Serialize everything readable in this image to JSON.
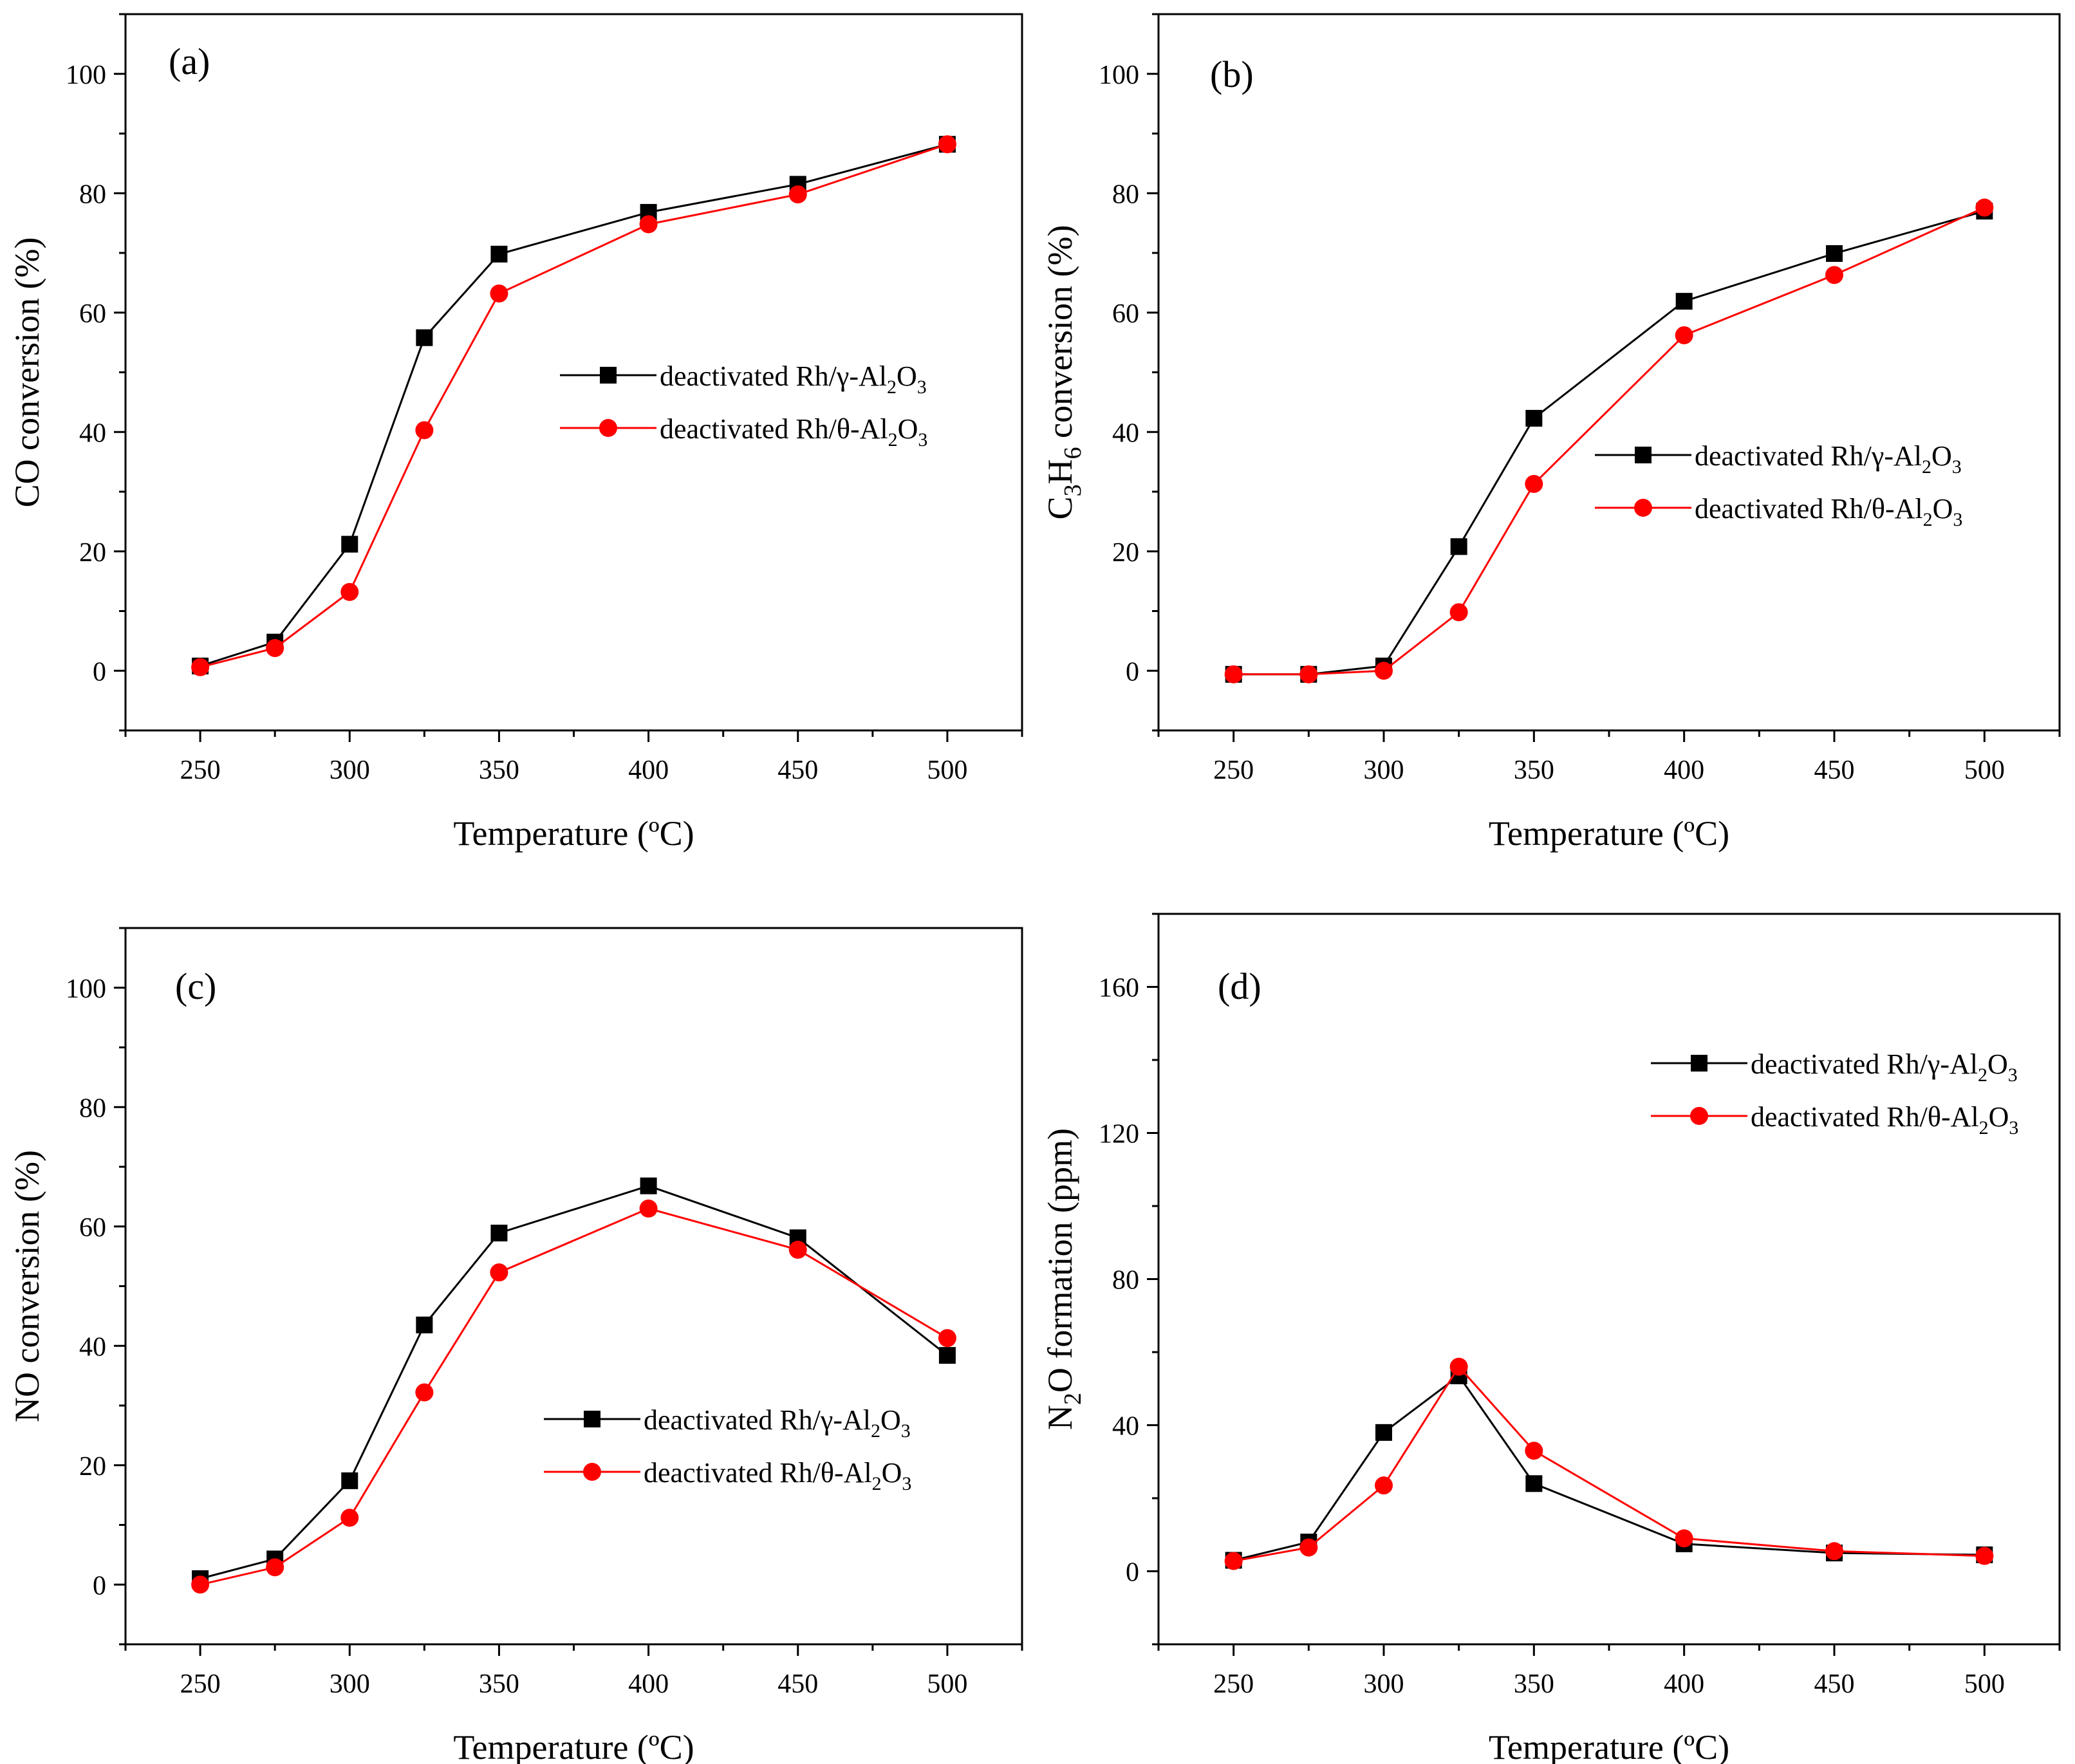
{
  "colors": {
    "series_a": "#000000",
    "series_b": "#ff0000"
  },
  "chart_data": [
    {
      "panel": "(a)",
      "type": "line",
      "x": [
        250,
        275,
        300,
        325,
        350,
        400,
        450,
        500
      ],
      "xlabel": "Temperature (ºC)",
      "ylabel": "CO conversion (%)",
      "ylabel_parts": [
        {
          "t": "CO conversion (%)",
          "sub": false
        }
      ],
      "xticks": [
        250,
        300,
        350,
        400,
        450,
        500
      ],
      "yticks": [
        0,
        20,
        40,
        60,
        80,
        100
      ],
      "xlim": [
        225,
        525
      ],
      "ylim": [
        -10,
        110
      ],
      "legend_position": "center-right",
      "series": [
        {
          "name": "deactivated Rh/γ-Al2O3",
          "legend_parts": [
            {
              "t": "deactivated Rh/γ-Al",
              "sub": false
            },
            {
              "t": "2",
              "sub": true
            },
            {
              "t": "O",
              "sub": false
            },
            {
              "t": "3",
              "sub": true
            }
          ],
          "marker": "square",
          "color": "#000000",
          "values": [
            0.8,
            4.8,
            21.2,
            55.8,
            69.8,
            76.8,
            81.5,
            88.2
          ]
        },
        {
          "name": "deactivated Rh/θ-Al2O3",
          "legend_parts": [
            {
              "t": "deactivated Rh/θ-Al",
              "sub": false
            },
            {
              "t": "2",
              "sub": true
            },
            {
              "t": "O",
              "sub": false
            },
            {
              "t": "3",
              "sub": true
            }
          ],
          "marker": "circle",
          "color": "#ff0000",
          "values": [
            0.6,
            3.8,
            13.2,
            40.3,
            63.2,
            74.8,
            79.8,
            88.2
          ]
        }
      ]
    },
    {
      "panel": "(b)",
      "type": "line",
      "x": [
        250,
        275,
        300,
        325,
        350,
        400,
        450,
        500
      ],
      "xlabel": "Temperature (ºC)",
      "ylabel": "C3H6 conversion (%)",
      "ylabel_parts": [
        {
          "t": "C",
          "sub": false
        },
        {
          "t": "3",
          "sub": true
        },
        {
          "t": "H",
          "sub": false
        },
        {
          "t": "6",
          "sub": true
        },
        {
          "t": " conversion (%)",
          "sub": false
        }
      ],
      "xticks": [
        250,
        300,
        350,
        400,
        450,
        500
      ],
      "yticks": [
        0,
        20,
        40,
        60,
        80,
        100
      ],
      "xlim": [
        225,
        525
      ],
      "ylim": [
        -10,
        110
      ],
      "legend_position": "center-right",
      "series": [
        {
          "name": "deactivated Rh/γ-Al2O3",
          "legend_parts": [
            {
              "t": "deactivated Rh/γ-Al",
              "sub": false
            },
            {
              "t": "2",
              "sub": true
            },
            {
              "t": "O",
              "sub": false
            },
            {
              "t": "3",
              "sub": true
            }
          ],
          "marker": "square",
          "color": "#000000",
          "values": [
            -0.6,
            -0.6,
            0.8,
            20.8,
            42.3,
            61.9,
            69.9,
            77.0
          ]
        },
        {
          "name": "deactivated Rh/θ-Al2O3",
          "legend_parts": [
            {
              "t": "deactivated Rh/θ-Al",
              "sub": false
            },
            {
              "t": "2",
              "sub": true
            },
            {
              "t": "O",
              "sub": false
            },
            {
              "t": "3",
              "sub": true
            }
          ],
          "marker": "circle",
          "color": "#ff0000",
          "values": [
            -0.6,
            -0.6,
            0.0,
            9.8,
            31.3,
            56.2,
            66.3,
            77.6
          ]
        }
      ]
    },
    {
      "panel": "(c)",
      "type": "line",
      "x": [
        250,
        275,
        300,
        325,
        350,
        400,
        450,
        500
      ],
      "xlabel": "Temperature (ºC)",
      "ylabel": "NO conversion (%)",
      "ylabel_parts": [
        {
          "t": "NO conversion (%)",
          "sub": false
        }
      ],
      "xticks": [
        250,
        300,
        350,
        400,
        450,
        500
      ],
      "yticks": [
        0,
        20,
        40,
        60,
        80,
        100
      ],
      "xlim": [
        225,
        525
      ],
      "ylim": [
        -10,
        110
      ],
      "legend_position": "bottom-right",
      "series": [
        {
          "name": "deactivated Rh/γ-Al2O3",
          "legend_parts": [
            {
              "t": "deactivated Rh/γ-Al",
              "sub": false
            },
            {
              "t": "2",
              "sub": true
            },
            {
              "t": "O",
              "sub": false
            },
            {
              "t": "3",
              "sub": true
            }
          ],
          "marker": "square",
          "color": "#000000",
          "values": [
            1.0,
            4.3,
            17.4,
            43.5,
            58.9,
            66.8,
            58.1,
            38.4
          ]
        },
        {
          "name": "deactivated Rh/θ-Al2O3",
          "legend_parts": [
            {
              "t": "deactivated Rh/θ-Al",
              "sub": false
            },
            {
              "t": "2",
              "sub": true
            },
            {
              "t": "O",
              "sub": false
            },
            {
              "t": "3",
              "sub": true
            }
          ],
          "marker": "circle",
          "color": "#ff0000",
          "values": [
            0.0,
            2.9,
            11.2,
            32.2,
            52.3,
            63.0,
            56.1,
            41.3
          ]
        }
      ]
    },
    {
      "panel": "(d)",
      "type": "line",
      "x": [
        250,
        275,
        300,
        325,
        350,
        400,
        450,
        500
      ],
      "xlabel": "Temperature (ºC)",
      "ylabel": "N2O formation (ppm)",
      "ylabel_parts": [
        {
          "t": "N",
          "sub": false
        },
        {
          "t": "2",
          "sub": true
        },
        {
          "t": "O formation (ppm)",
          "sub": false
        }
      ],
      "xticks": [
        250,
        300,
        350,
        400,
        450,
        500
      ],
      "yticks": [
        0,
        40,
        80,
        120,
        160
      ],
      "xlim": [
        225,
        525
      ],
      "ylim": [
        -20,
        180
      ],
      "legend_position": "top-right",
      "series": [
        {
          "name": "deactivated Rh/γ-Al2O3",
          "legend_parts": [
            {
              "t": "deactivated Rh/γ-Al",
              "sub": false
            },
            {
              "t": "2",
              "sub": true
            },
            {
              "t": "O",
              "sub": false
            },
            {
              "t": "3",
              "sub": true
            }
          ],
          "marker": "square",
          "color": "#000000",
          "values": [
            3.0,
            8.0,
            38.0,
            53.5,
            24.0,
            7.5,
            5.0,
            4.5
          ]
        },
        {
          "name": "deactivated Rh/θ-Al2O3",
          "legend_parts": [
            {
              "t": "deactivated Rh/θ-Al",
              "sub": false
            },
            {
              "t": "2",
              "sub": true
            },
            {
              "t": "O",
              "sub": false
            },
            {
              "t": "3",
              "sub": true
            }
          ],
          "marker": "circle",
          "color": "#ff0000",
          "values": [
            2.8,
            6.5,
            23.5,
            56.0,
            33.0,
            9.0,
            5.5,
            4.2
          ]
        }
      ]
    }
  ]
}
